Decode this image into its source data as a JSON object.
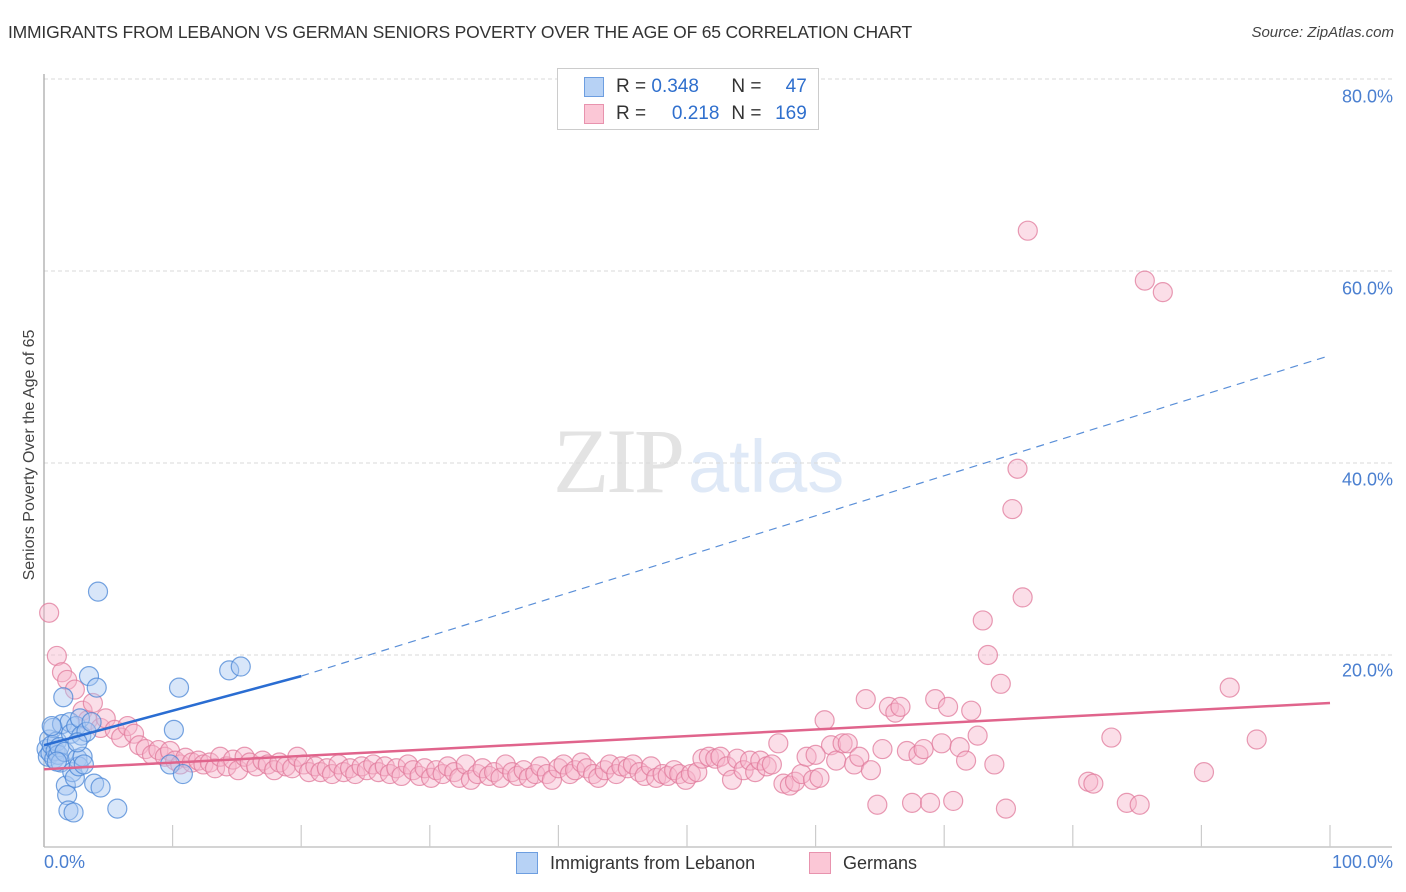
{
  "header": {
    "title": "IMMIGRANTS FROM LEBANON VS GERMAN SENIORS POVERTY OVER THE AGE OF 65 CORRELATION CHART",
    "source": "Source: ZipAtlas.com"
  },
  "watermark": {
    "zip": "ZIP",
    "atlas": "atlas"
  },
  "stats_legend": {
    "rows": [
      {
        "series": "Immigrants from Lebanon",
        "r_label": "R =",
        "r_value": "0.348",
        "n_label": "N =",
        "n_value": "47",
        "color": "#6d9ee0"
      },
      {
        "series": "Germans",
        "r_label": "R =",
        "r_value": "0.218",
        "n_label": "N =",
        "n_value": "169",
        "color": "#e893ae"
      }
    ]
  },
  "axes": {
    "ylabel": "Seniors Poverty Over the Age of 65",
    "yticks": [
      "80.0%",
      "60.0%",
      "40.0%",
      "20.0%"
    ],
    "xticks": [
      "0.0%",
      "100.0%"
    ]
  },
  "bottom_legend": {
    "items": [
      {
        "label": "Immigrants from Lebanon",
        "color": "#b7d2f5"
      },
      {
        "label": "Germans",
        "color": "#fbc7d6"
      }
    ]
  },
  "chart_data": {
    "type": "scatter",
    "title": "IMMIGRANTS FROM LEBANON VS GERMAN SENIORS POVERTY OVER THE AGE OF 65 CORRELATION CHART",
    "xlabel": "Immigrants from Lebanon",
    "ylabel": "Seniors Poverty Over the Age of 65",
    "xlim": [
      0,
      100
    ],
    "ylim": [
      0,
      80
    ],
    "x_tick_labels": [
      "0.0%",
      "100.0%"
    ],
    "y_tick_labels": [
      "20.0%",
      "40.0%",
      "60.0%",
      "80.0%"
    ],
    "grid": "horizontal dashed",
    "legend_position": "bottom",
    "series": [
      {
        "name": "Immigrants from Lebanon",
        "color": "#6d9ee0",
        "R": 0.348,
        "N": 47,
        "trend": {
          "x": [
            0,
            20,
            100
          ],
          "y": [
            10.6,
            17.8,
            51.2
          ],
          "solid_until_x": 20
        },
        "points": [
          [
            0.2,
            10.2
          ],
          [
            0.3,
            9.4
          ],
          [
            0.4,
            11.2
          ],
          [
            0.5,
            9.8
          ],
          [
            0.6,
            10.6
          ],
          [
            0.7,
            12.4
          ],
          [
            0.8,
            9.2
          ],
          [
            0.9,
            10.0
          ],
          [
            1.0,
            11.0
          ],
          [
            1.1,
            9.6
          ],
          [
            1.2,
            10.4
          ],
          [
            1.3,
            8.8
          ],
          [
            1.4,
            12.8
          ],
          [
            1.5,
            15.6
          ],
          [
            1.6,
            9.9
          ],
          [
            1.7,
            6.4
          ],
          [
            1.8,
            5.4
          ],
          [
            1.9,
            3.8
          ],
          [
            2.0,
            13.0
          ],
          [
            2.1,
            11.8
          ],
          [
            2.2,
            7.8
          ],
          [
            2.3,
            3.6
          ],
          [
            2.4,
            7.2
          ],
          [
            2.5,
            12.6
          ],
          [
            2.6,
            9.2
          ],
          [
            2.7,
            8.4
          ],
          [
            2.8,
            13.4
          ],
          [
            2.9,
            11.6
          ],
          [
            3.0,
            9.4
          ],
          [
            3.1,
            8.6
          ],
          [
            3.3,
            12.0
          ],
          [
            3.5,
            17.8
          ],
          [
            3.7,
            13.0
          ],
          [
            3.9,
            6.6
          ],
          [
            4.1,
            16.6
          ],
          [
            4.2,
            26.6
          ],
          [
            4.4,
            6.2
          ],
          [
            5.7,
            4.0
          ],
          [
            9.8,
            8.6
          ],
          [
            10.1,
            12.2
          ],
          [
            10.5,
            16.6
          ],
          [
            10.8,
            7.6
          ],
          [
            14.4,
            18.4
          ],
          [
            15.3,
            18.8
          ],
          [
            1.0,
            8.9
          ],
          [
            0.6,
            12.6
          ],
          [
            2.6,
            10.9
          ]
        ]
      },
      {
        "name": "Germans",
        "color": "#e893ae",
        "R": 0.218,
        "N": 169,
        "trend": {
          "x": [
            0,
            100
          ],
          "y": [
            8.1,
            15.0
          ]
        },
        "points": [
          [
            0.4,
            24.4
          ],
          [
            1.0,
            19.9
          ],
          [
            1.4,
            18.2
          ],
          [
            1.8,
            17.4
          ],
          [
            2.4,
            16.4
          ],
          [
            3.0,
            14.2
          ],
          [
            3.4,
            13.2
          ],
          [
            3.8,
            15.0
          ],
          [
            4.4,
            12.4
          ],
          [
            4.8,
            13.4
          ],
          [
            5.5,
            12.2
          ],
          [
            6.0,
            11.4
          ],
          [
            6.5,
            12.6
          ],
          [
            7.0,
            11.8
          ],
          [
            7.4,
            10.6
          ],
          [
            7.9,
            10.2
          ],
          [
            8.4,
            9.6
          ],
          [
            8.9,
            10.1
          ],
          [
            9.4,
            9.4
          ],
          [
            9.8,
            10.0
          ],
          [
            10.2,
            9.0
          ],
          [
            10.6,
            8.6
          ],
          [
            11.0,
            9.3
          ],
          [
            11.5,
            8.8
          ],
          [
            12.0,
            9.0
          ],
          [
            12.4,
            8.6
          ],
          [
            12.9,
            8.8
          ],
          [
            13.3,
            8.2
          ],
          [
            13.7,
            9.4
          ],
          [
            14.2,
            8.4
          ],
          [
            14.7,
            9.1
          ],
          [
            15.1,
            8.0
          ],
          [
            15.6,
            9.4
          ],
          [
            16.0,
            8.8
          ],
          [
            16.5,
            8.4
          ],
          [
            17.0,
            9.0
          ],
          [
            17.4,
            8.6
          ],
          [
            17.9,
            8.0
          ],
          [
            18.3,
            8.8
          ],
          [
            18.8,
            8.4
          ],
          [
            19.3,
            8.2
          ],
          [
            19.7,
            9.4
          ],
          [
            20.2,
            8.6
          ],
          [
            20.6,
            7.8
          ],
          [
            21.1,
            8.4
          ],
          [
            21.5,
            7.8
          ],
          [
            22.0,
            8.2
          ],
          [
            22.4,
            7.6
          ],
          [
            22.9,
            8.6
          ],
          [
            23.3,
            7.8
          ],
          [
            23.8,
            8.2
          ],
          [
            24.2,
            7.6
          ],
          [
            24.7,
            8.4
          ],
          [
            25.1,
            8.0
          ],
          [
            25.6,
            8.6
          ],
          [
            26.0,
            7.8
          ],
          [
            26.5,
            8.4
          ],
          [
            26.9,
            7.6
          ],
          [
            27.4,
            8.2
          ],
          [
            27.8,
            7.4
          ],
          [
            28.3,
            8.6
          ],
          [
            28.7,
            8.0
          ],
          [
            29.2,
            7.4
          ],
          [
            29.6,
            8.2
          ],
          [
            30.1,
            7.2
          ],
          [
            30.5,
            8.0
          ],
          [
            31.0,
            7.6
          ],
          [
            31.4,
            8.4
          ],
          [
            31.9,
            7.8
          ],
          [
            32.3,
            7.2
          ],
          [
            32.8,
            8.6
          ],
          [
            33.2,
            7.0
          ],
          [
            33.7,
            7.6
          ],
          [
            34.1,
            8.2
          ],
          [
            34.6,
            7.4
          ],
          [
            35.0,
            7.8
          ],
          [
            35.5,
            7.2
          ],
          [
            35.9,
            8.6
          ],
          [
            36.4,
            7.8
          ],
          [
            36.8,
            7.4
          ],
          [
            37.3,
            8.0
          ],
          [
            37.7,
            7.2
          ],
          [
            38.2,
            7.6
          ],
          [
            38.6,
            8.4
          ],
          [
            39.1,
            7.6
          ],
          [
            39.5,
            7.0
          ],
          [
            40.0,
            8.2
          ],
          [
            40.4,
            8.6
          ],
          [
            40.9,
            7.6
          ],
          [
            41.3,
            8.0
          ],
          [
            41.8,
            8.8
          ],
          [
            42.2,
            8.2
          ],
          [
            42.7,
            7.6
          ],
          [
            43.1,
            7.2
          ],
          [
            43.6,
            8.0
          ],
          [
            44.0,
            8.6
          ],
          [
            44.5,
            7.6
          ],
          [
            44.9,
            8.4
          ],
          [
            45.4,
            8.2
          ],
          [
            45.8,
            8.6
          ],
          [
            46.3,
            7.8
          ],
          [
            46.7,
            7.4
          ],
          [
            47.2,
            8.4
          ],
          [
            47.6,
            7.2
          ],
          [
            48.1,
            7.6
          ],
          [
            48.5,
            7.4
          ],
          [
            49.0,
            8.0
          ],
          [
            49.4,
            7.6
          ],
          [
            49.9,
            7.0
          ],
          [
            50.3,
            7.6
          ],
          [
            50.8,
            7.8
          ],
          [
            51.2,
            9.2
          ],
          [
            51.7,
            9.4
          ],
          [
            52.2,
            9.2
          ],
          [
            52.6,
            9.4
          ],
          [
            53.1,
            8.4
          ],
          [
            53.5,
            7.0
          ],
          [
            53.9,
            9.2
          ],
          [
            54.4,
            8.0
          ],
          [
            54.9,
            9.0
          ],
          [
            55.3,
            7.8
          ],
          [
            55.7,
            9.0
          ],
          [
            56.2,
            8.4
          ],
          [
            56.6,
            8.6
          ],
          [
            57.1,
            10.8
          ],
          [
            57.5,
            6.6
          ],
          [
            58.0,
            6.4
          ],
          [
            58.4,
            6.8
          ],
          [
            58.9,
            7.6
          ],
          [
            59.3,
            9.4
          ],
          [
            59.8,
            7.0
          ],
          [
            60.3,
            7.2
          ],
          [
            60.7,
            13.2
          ],
          [
            61.2,
            10.6
          ],
          [
            61.6,
            9.0
          ],
          [
            62.1,
            10.8
          ],
          [
            62.5,
            10.8
          ],
          [
            63.0,
            8.6
          ],
          [
            63.4,
            9.4
          ],
          [
            63.9,
            15.4
          ],
          [
            64.3,
            8.0
          ],
          [
            64.8,
            4.4
          ],
          [
            65.2,
            10.2
          ],
          [
            65.7,
            14.6
          ],
          [
            66.2,
            14.0
          ],
          [
            66.6,
            14.6
          ],
          [
            67.1,
            10.0
          ],
          [
            67.5,
            4.6
          ],
          [
            68.0,
            9.6
          ],
          [
            68.4,
            10.2
          ],
          [
            68.9,
            4.6
          ],
          [
            69.3,
            15.4
          ],
          [
            69.8,
            10.8
          ],
          [
            70.3,
            14.6
          ],
          [
            70.7,
            4.8
          ],
          [
            71.2,
            10.4
          ],
          [
            71.7,
            9.0
          ],
          [
            72.1,
            14.2
          ],
          [
            72.6,
            11.6
          ],
          [
            73.0,
            23.6
          ],
          [
            73.4,
            20.0
          ],
          [
            73.9,
            8.6
          ],
          [
            74.4,
            17.0
          ],
          [
            74.8,
            4.0
          ],
          [
            75.3,
            35.2
          ],
          [
            75.7,
            39.4
          ],
          [
            76.1,
            26.0
          ],
          [
            76.5,
            64.2
          ],
          [
            81.2,
            6.8
          ],
          [
            81.6,
            6.6
          ],
          [
            83.0,
            11.4
          ],
          [
            84.2,
            4.6
          ],
          [
            85.2,
            4.4
          ],
          [
            85.6,
            59.0
          ],
          [
            87.0,
            57.8
          ],
          [
            90.2,
            7.8
          ],
          [
            92.2,
            16.6
          ],
          [
            94.3,
            11.2
          ],
          [
            60.0,
            9.6
          ]
        ]
      }
    ]
  }
}
